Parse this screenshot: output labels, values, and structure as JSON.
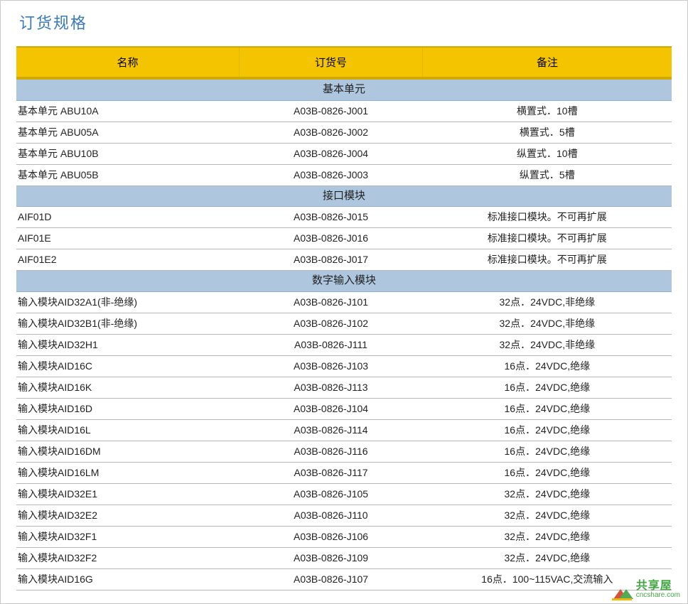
{
  "title": "订货规格",
  "columns": [
    "名称",
    "订货号",
    "备注"
  ],
  "sections": [
    {
      "header": "基本单元",
      "rows": [
        {
          "name": "基本单元 ABU10A",
          "order": "A03B-0826-J001",
          "remark": "横置式．10槽"
        },
        {
          "name": "基本单元 ABU05A",
          "order": "A03B-0826-J002",
          "remark": "横置式．5槽"
        },
        {
          "name": "基本单元 ABU10B",
          "order": "A03B-0826-J004",
          "remark": "纵置式．10槽"
        },
        {
          "name": "基本单元 ABU05B",
          "order": "A03B-0826-J003",
          "remark": "纵置式．5槽"
        }
      ]
    },
    {
      "header": "接口模块",
      "rows": [
        {
          "name": "AIF01D",
          "order": "A03B-0826-J015",
          "remark": "标准接口模块。不可再扩展"
        },
        {
          "name": "AIF01E",
          "order": "A03B-0826-J016",
          "remark": "标准接口模块。不可再扩展"
        },
        {
          "name": "AIF01E2",
          "order": "A03B-0826-J017",
          "remark": "标准接口模块。不可再扩展"
        }
      ]
    },
    {
      "header": "数字输入模块",
      "rows": [
        {
          "name": "输入模块AID32A1(非-绝缘)",
          "order": "A03B-0826-J101",
          "remark": "32点．24VDC,非绝缘"
        },
        {
          "name": "输入模块AID32B1(非-绝缘)",
          "order": "A03B-0826-J102",
          "remark": "32点．24VDC,非绝缘"
        },
        {
          "name": "输入模块AID32H1",
          "order": "A03B-0826-J111",
          "remark": "32点．24VDC,非绝缘"
        },
        {
          "name": "输入模块AID16C",
          "order": "A03B-0826-J103",
          "remark": "16点．24VDC,绝缘"
        },
        {
          "name": "输入模块AID16K",
          "order": "A03B-0826-J113",
          "remark": "16点．24VDC,绝缘"
        },
        {
          "name": "输入模块AID16D",
          "order": "A03B-0826-J104",
          "remark": "16点．24VDC,绝缘"
        },
        {
          "name": "输入模块AID16L",
          "order": "A03B-0826-J114",
          "remark": "16点．24VDC,绝缘"
        },
        {
          "name": "输入模块AID16DM",
          "order": "A03B-0826-J116",
          "remark": "16点．24VDC,绝缘"
        },
        {
          "name": "输入模块AID16LM",
          "order": "A03B-0826-J117",
          "remark": "16点．24VDC,绝缘"
        },
        {
          "name": "输入模块AID32E1",
          "order": "A03B-0826-J105",
          "remark": "32点．24VDC,绝缘"
        },
        {
          "name": "输入模块AID32E2",
          "order": "A03B-0826-J110",
          "remark": "32点．24VDC,绝缘"
        },
        {
          "name": "输入模块AID32F1",
          "order": "A03B-0826-J106",
          "remark": "32点．24VDC,绝缘"
        },
        {
          "name": "输入模块AID32F2",
          "order": "A03B-0826-J109",
          "remark": "32点．24VDC,绝缘"
        },
        {
          "name": "输入模块AID16G",
          "order": "A03B-0826-J107",
          "remark": "16点．100~115VAC,交流输入"
        }
      ]
    }
  ],
  "watermark": {
    "cn": "共享屋",
    "en": "cncshare.com"
  },
  "style": {
    "header_bg": "#f5c400",
    "header_border": "#cfa800",
    "section_bg": "#aec6de",
    "row_border": "#b8b8b8",
    "title_color": "#3a7ab8",
    "page_border": "#c9c9c9",
    "font_size_body": 14,
    "font_size_header": 15,
    "font_size_title": 22,
    "col_widths_pct": [
      34,
      28,
      38
    ]
  }
}
